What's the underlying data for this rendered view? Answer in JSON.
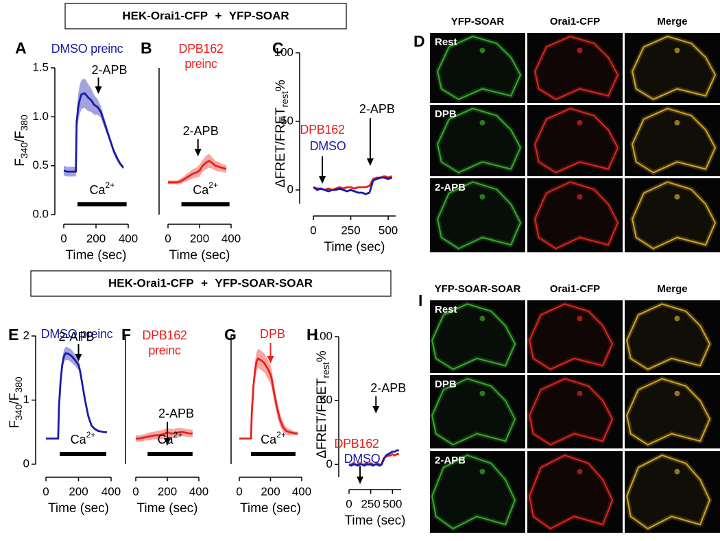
{
  "headers": [
    "HEK-Orai1-CFP + YFP-SOAR",
    "HEK-Orai1-CFP + YFP-SOAR-SOAR"
  ],
  "chart_data": [
    {
      "type": "line",
      "panel": "A",
      "xlabel": "Time (sec)",
      "ylabel": [
        "F",
        "340",
        "/F",
        "380"
      ],
      "xlim": [
        0,
        400
      ],
      "xticks": [
        0,
        200,
        400
      ],
      "ylim": [
        0,
        1.5
      ],
      "yticks": [
        {
          "value": 0,
          "label": "0.0"
        },
        0.5,
        {
          "value": 1,
          "label": "1.0"
        },
        1.5
      ],
      "x": [
        0,
        20,
        40,
        60,
        75,
        80,
        90,
        100,
        110,
        130,
        150,
        170,
        190,
        210,
        230,
        250,
        270,
        290,
        310,
        330,
        350,
        370
      ],
      "series": [
        {
          "name": "DMSO preinc",
          "color": "#1a1aa8",
          "values": [
            0.45,
            0.44,
            0.44,
            0.44,
            0.44,
            0.95,
            1.1,
            1.18,
            1.23,
            1.24,
            1.2,
            1.17,
            1.12,
            1.1,
            1.05,
            0.95,
            0.85,
            0.75,
            0.65,
            0.58,
            0.52,
            0.48
          ],
          "errors": [
            0.05,
            0.05,
            0.05,
            0.05,
            0.05,
            0.12,
            0.14,
            0.15,
            0.15,
            0.15,
            0.14,
            0.12,
            0.1,
            0.08,
            0.06,
            0.05,
            0.04,
            0.03,
            0.03,
            0.03,
            0.02,
            0.02
          ]
        }
      ],
      "annotations": [
        {
          "text": "2-APB",
          "x": 215
        }
      ],
      "ca": {
        "text": [
          "Ca",
          "2+"
        ],
        "start": 85,
        "end": 390
      }
    },
    {
      "type": "line",
      "panel": "B",
      "xlabel": "Time (sec)",
      "xlim": [
        0,
        400
      ],
      "xticks": [
        0,
        200,
        400
      ],
      "ylim": [
        0,
        1.5
      ],
      "x": [
        0,
        20,
        40,
        60,
        80,
        100,
        120,
        140,
        160,
        180,
        200,
        220,
        240,
        260,
        280,
        300,
        320,
        340,
        360,
        370
      ],
      "series": [
        {
          "name": "DPB162 preinc",
          "color": "#e8201a",
          "values": [
            0.33,
            0.33,
            0.33,
            0.33,
            0.34,
            0.36,
            0.38,
            0.4,
            0.42,
            0.43,
            0.45,
            0.5,
            0.53,
            0.55,
            0.53,
            0.5,
            0.49,
            0.48,
            0.47,
            0.47
          ],
          "errors": [
            0.02,
            0.02,
            0.02,
            0.02,
            0.03,
            0.03,
            0.04,
            0.04,
            0.05,
            0.05,
            0.06,
            0.06,
            0.07,
            0.07,
            0.06,
            0.05,
            0.05,
            0.04,
            0.04,
            0.04
          ]
        }
      ],
      "annotations": [
        {
          "text": "2-APB",
          "x": 190
        }
      ],
      "ca": {
        "text": [
          "Ca",
          "2+"
        ],
        "start": 85,
        "end": 390
      }
    },
    {
      "type": "line",
      "panel": "C",
      "xlabel": "Time (sec)",
      "ylabel": [
        "ΔFRET/FRET",
        "rest",
        "%"
      ],
      "xlim": [
        0,
        550
      ],
      "xticks": [
        0,
        250,
        500
      ],
      "ylim": [
        -10,
        100
      ],
      "yticks": [
        0,
        50,
        100
      ],
      "x": [
        0,
        25,
        50,
        75,
        100,
        125,
        150,
        175,
        200,
        225,
        250,
        275,
        300,
        325,
        350,
        375,
        400,
        425,
        450,
        475,
        500,
        525
      ],
      "series": [
        {
          "name": "DPB162",
          "color": "#e8201a",
          "values": [
            2,
            1,
            1,
            0,
            1,
            0,
            1,
            2,
            1,
            2,
            2,
            1,
            2,
            2,
            2,
            3,
            8,
            9,
            9,
            10,
            9,
            10
          ]
        },
        {
          "name": "DMSO",
          "color": "#1a1aa8",
          "values": [
            2,
            0,
            1,
            0,
            -1,
            0,
            0,
            1,
            0,
            -1,
            0,
            -1,
            -2,
            -2,
            -3,
            -2,
            7,
            8,
            9,
            9,
            8,
            9
          ]
        }
      ],
      "annotations": [
        {
          "text": "2-APB",
          "x": 380
        },
        {
          "x": 60
        }
      ]
    },
    {
      "type": "line",
      "panel": "E",
      "xlabel": "Time (sec)",
      "ylabel": [
        "F",
        "340",
        "/F",
        "380"
      ],
      "xlim": [
        0,
        400
      ],
      "xticks": [
        0,
        200,
        400
      ],
      "ylim": [
        0,
        2
      ],
      "yticks": [
        0,
        1,
        2
      ],
      "x": [
        0,
        20,
        40,
        60,
        75,
        80,
        90,
        100,
        110,
        120,
        140,
        160,
        180,
        200,
        210,
        220,
        240,
        260,
        280,
        300,
        320,
        340,
        360,
        375
      ],
      "series": [
        {
          "name": "DMSO preinc",
          "color": "#1a1aa8",
          "values": [
            0.4,
            0.4,
            0.4,
            0.4,
            0.4,
            0.9,
            1.3,
            1.55,
            1.68,
            1.73,
            1.72,
            1.68,
            1.62,
            1.55,
            1.45,
            1.3,
            1.0,
            0.75,
            0.6,
            0.55,
            0.52,
            0.51,
            0.5,
            0.5
          ],
          "errors": [
            0.01,
            0.01,
            0.01,
            0.01,
            0.01,
            0.05,
            0.08,
            0.1,
            0.1,
            0.1,
            0.1,
            0.1,
            0.09,
            0.08,
            0.07,
            0.06,
            0.05,
            0.03,
            0.02,
            0.02,
            0.02,
            0.01,
            0.01,
            0.01
          ]
        }
      ],
      "annotations": [
        {
          "text": "2-APB",
          "x": 200
        }
      ],
      "ca": {
        "text": [
          "Ca",
          "2+"
        ],
        "start": 85,
        "end": 370
      }
    },
    {
      "type": "line",
      "panel": "F",
      "xlabel": "Time (sec)",
      "xlim": [
        0,
        400
      ],
      "xticks": [
        0,
        200,
        400
      ],
      "ylim": [
        0,
        2
      ],
      "x": [
        0,
        20,
        40,
        60,
        80,
        100,
        120,
        140,
        160,
        180,
        200,
        220,
        240,
        260,
        280,
        300,
        320,
        340,
        360
      ],
      "series": [
        {
          "name": "DPB162 preinc",
          "color": "#e8201a",
          "values": [
            0.4,
            0.4,
            0.41,
            0.42,
            0.43,
            0.44,
            0.45,
            0.45,
            0.46,
            0.47,
            0.5,
            0.48,
            0.48,
            0.49,
            0.5,
            0.5,
            0.49,
            0.48,
            0.48
          ],
          "errors": [
            0.05,
            0.05,
            0.05,
            0.05,
            0.06,
            0.06,
            0.06,
            0.07,
            0.07,
            0.07,
            0.07,
            0.07,
            0.07,
            0.07,
            0.07,
            0.06,
            0.06,
            0.06,
            0.06
          ]
        }
      ],
      "annotations": [
        {
          "text": "2-APB",
          "x": 200
        }
      ],
      "ca": {
        "text": [
          "Ca",
          "2+"
        ],
        "start": 75,
        "end": 360
      }
    },
    {
      "type": "line",
      "panel": "G",
      "xlabel": "Time (sec)",
      "xlim": [
        0,
        400
      ],
      "xticks": [
        0,
        200,
        400
      ],
      "ylim": [
        0,
        2
      ],
      "x": [
        0,
        20,
        40,
        60,
        75,
        80,
        90,
        100,
        110,
        120,
        140,
        160,
        180,
        200,
        210,
        220,
        240,
        260,
        280,
        300,
        320,
        340,
        360,
        375
      ],
      "series": [
        {
          "color": "#e8201a",
          "values": [
            0.4,
            0.4,
            0.4,
            0.4,
            0.4,
            0.8,
            1.2,
            1.45,
            1.6,
            1.65,
            1.62,
            1.58,
            1.5,
            1.4,
            1.3,
            1.15,
            0.9,
            0.7,
            0.58,
            0.52,
            0.5,
            0.49,
            0.48,
            0.48
          ],
          "errors": [
            0.01,
            0.01,
            0.01,
            0.01,
            0.01,
            0.08,
            0.12,
            0.15,
            0.15,
            0.15,
            0.15,
            0.15,
            0.15,
            0.15,
            0.14,
            0.13,
            0.12,
            0.1,
            0.08,
            0.06,
            0.05,
            0.04,
            0.03,
            0.03
          ]
        }
      ],
      "annotations": [
        {
          "text": "DPB",
          "x": 200,
          "color": "#e8201a"
        }
      ],
      "ca": {
        "text": [
          "Ca",
          "2+"
        ],
        "start": 75,
        "end": 360
      }
    },
    {
      "type": "line",
      "panel": "H",
      "xlabel": "Time (sec)",
      "ylabel": [
        "ΔFRET/FRET",
        "rest",
        "%"
      ],
      "xlim": [
        0,
        600
      ],
      "xticks": [
        0,
        250,
        500
      ],
      "ylim": [
        -10,
        100
      ],
      "yticks": [
        0,
        50,
        100
      ],
      "x": [
        0,
        25,
        50,
        75,
        100,
        125,
        150,
        175,
        200,
        225,
        250,
        275,
        300,
        325,
        350,
        375,
        400,
        425,
        450,
        475,
        500,
        525,
        550,
        575
      ],
      "series": [
        {
          "name": "DPB162",
          "color": "#e8201a",
          "values": [
            0,
            0,
            1,
            0,
            0,
            1,
            0,
            0,
            1,
            0,
            1,
            0,
            0,
            1,
            0,
            0,
            5,
            6,
            7,
            7,
            8,
            7,
            8,
            8
          ]
        },
        {
          "name": "DMSO",
          "color": "#1a1aa8",
          "values": [
            0,
            -1,
            0,
            0,
            -1,
            0,
            0,
            -1,
            0,
            0,
            0,
            -1,
            0,
            0,
            -1,
            0,
            4,
            7,
            8,
            9,
            10,
            10,
            11,
            11
          ]
        }
      ],
      "annotations": [
        {
          "text": "2-APB",
          "x": 310
        },
        {
          "x": 127
        }
      ]
    }
  ],
  "image_panels": [
    {
      "panel": "D",
      "columns": [
        "YFP-SOAR",
        "Orai1-CFP",
        "Merge"
      ],
      "rows": [
        "Rest",
        "DPB",
        "2-APB"
      ]
    },
    {
      "panel": "I",
      "columns": [
        "YFP-SOAR-SOAR",
        "Orai1-CFP",
        "Merge"
      ],
      "rows": [
        "Rest",
        "DPB",
        "2-APB"
      ]
    }
  ]
}
